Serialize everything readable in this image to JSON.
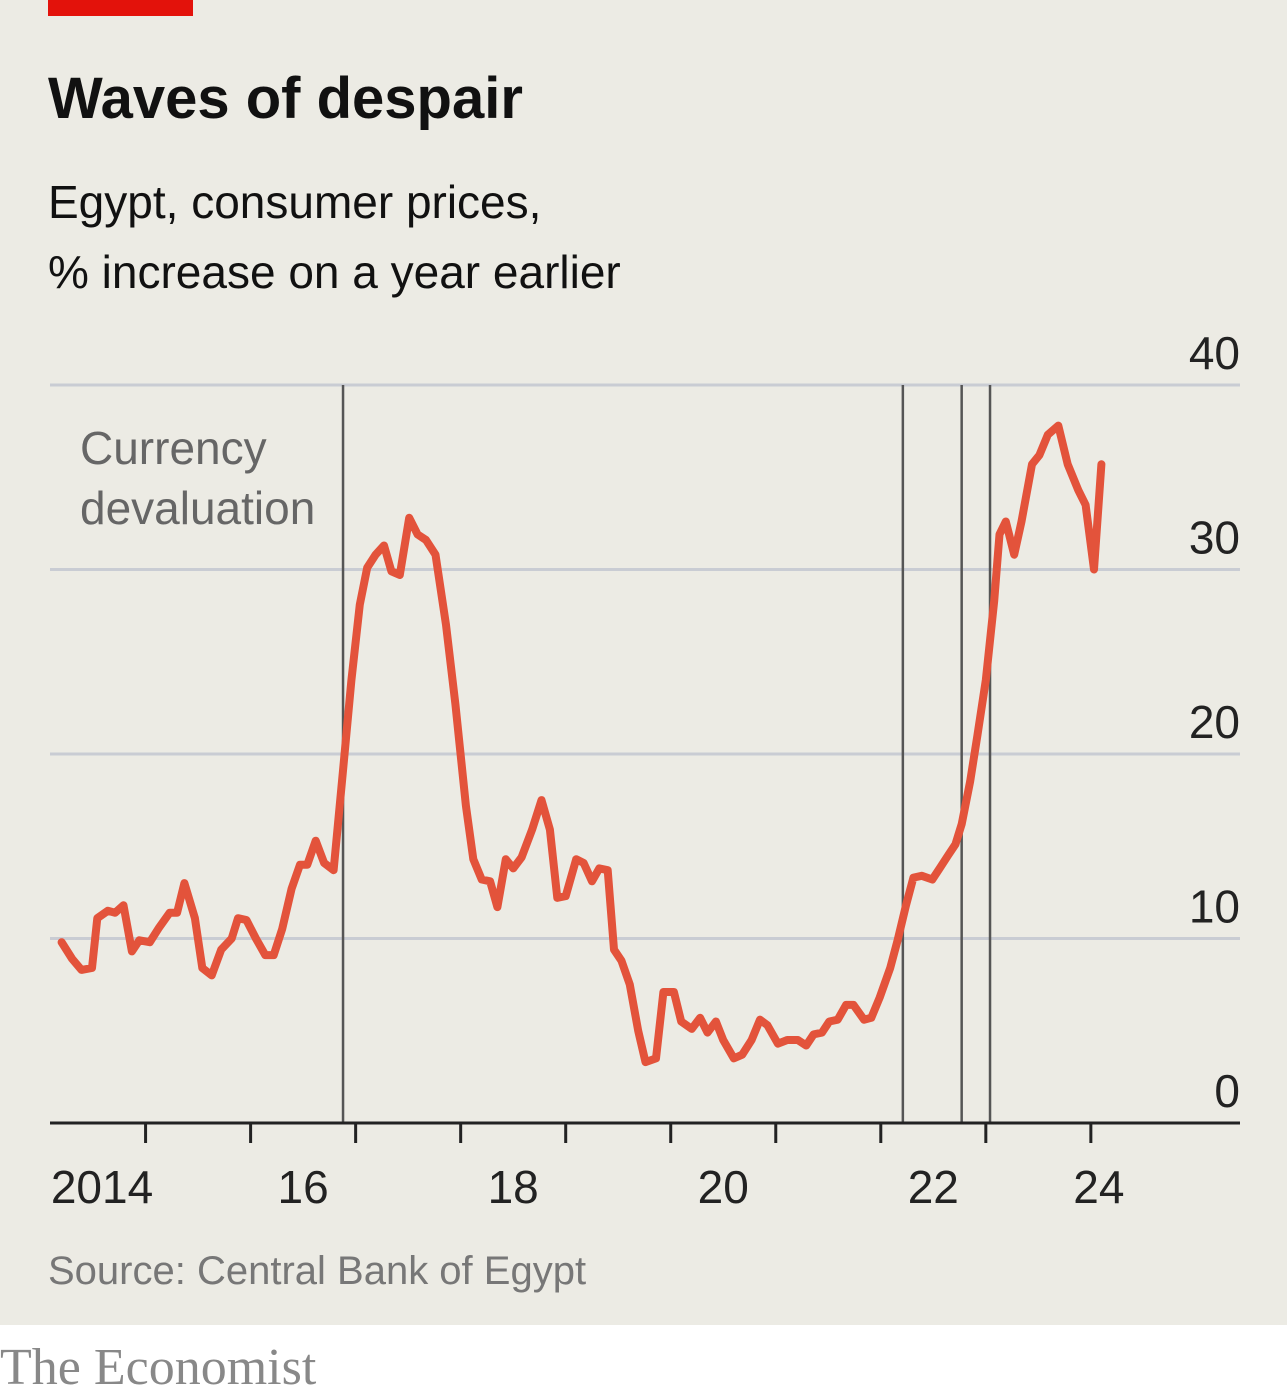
{
  "chart_data": {
    "type": "line",
    "title": "Waves of despair",
    "subtitle": "Egypt, consumer prices,",
    "subtitle2": "% increase on a year earlier",
    "annotation": "Currency devaluation",
    "source": "Source: Central Bank of Egypt",
    "watermark": "The Economist",
    "color": "#e3533b",
    "x": [
      2014.2,
      2014.3,
      2014.39,
      2014.49,
      2014.54,
      2014.64,
      2014.71,
      2014.79,
      2014.87,
      2014.94,
      2015.04,
      2015.13,
      2015.23,
      2015.3,
      2015.37,
      2015.47,
      2015.54,
      2015.63,
      2015.72,
      2015.82,
      2015.88,
      2015.96,
      2016.05,
      2016.14,
      2016.22,
      2016.3,
      2016.39,
      2016.47,
      2016.54,
      2016.62,
      2016.7,
      2016.79,
      2016.88,
      2016.96,
      2017.04,
      2017.11,
      2017.19,
      2017.27,
      2017.34,
      2017.42,
      2017.51,
      2017.59,
      2017.67,
      2017.76,
      2017.86,
      2017.95,
      2018.05,
      2018.12,
      2018.2,
      2018.28,
      2018.35,
      2018.43,
      2018.5,
      2018.58,
      2018.68,
      2018.77,
      2018.85,
      2018.92,
      2019.0,
      2019.1,
      2019.17,
      2019.25,
      2019.32,
      2019.4,
      2019.46,
      2019.53,
      2019.61,
      2019.69,
      2019.76,
      2019.86,
      2019.93,
      2020.03,
      2020.1,
      2020.2,
      2020.28,
      2020.35,
      2020.43,
      2020.5,
      2020.6,
      2020.68,
      2020.77,
      2020.85,
      2020.92,
      2021.02,
      2021.11,
      2021.21,
      2021.29,
      2021.36,
      2021.44,
      2021.51,
      2021.59,
      2021.67,
      2021.74,
      2021.84,
      2021.91,
      2021.99,
      2022.09,
      2022.16,
      2022.24,
      2022.31,
      2022.39,
      2022.49,
      2022.56,
      2022.64,
      2022.71,
      2022.77,
      2022.85,
      2022.92,
      2023.0,
      2023.08,
      2023.13,
      2023.19,
      2023.27,
      2023.34,
      2023.44,
      2023.51,
      2023.59,
      2023.69,
      2023.78,
      2023.88,
      2023.95,
      2024.03,
      2024.1
    ],
    "values": [
      9.8,
      8.9,
      8.3,
      8.4,
      11.1,
      11.5,
      11.4,
      11.8,
      9.3,
      9.9,
      9.8,
      10.6,
      11.4,
      11.4,
      13.0,
      11.1,
      8.4,
      8.0,
      9.4,
      10.0,
      11.1,
      11.0,
      10.0,
      9.1,
      9.1,
      10.5,
      12.7,
      14.0,
      14.0,
      15.3,
      14.1,
      13.7,
      19.1,
      24.0,
      28.1,
      30.1,
      30.8,
      31.3,
      29.9,
      29.7,
      32.8,
      31.9,
      31.6,
      30.8,
      27.0,
      22.7,
      17.2,
      14.3,
      13.2,
      13.1,
      11.7,
      14.3,
      13.8,
      14.4,
      15.9,
      17.5,
      15.9,
      12.2,
      12.3,
      14.3,
      14.1,
      13.1,
      13.8,
      13.7,
      9.4,
      8.8,
      7.5,
      5.0,
      3.3,
      3.5,
      7.1,
      7.1,
      5.5,
      5.1,
      5.7,
      4.9,
      5.5,
      4.5,
      3.5,
      3.7,
      4.5,
      5.6,
      5.3,
      4.3,
      4.5,
      4.5,
      4.2,
      4.8,
      4.9,
      5.5,
      5.6,
      6.4,
      6.4,
      5.6,
      5.7,
      6.8,
      8.4,
      9.9,
      11.8,
      13.3,
      13.4,
      13.2,
      13.8,
      14.5,
      15.1,
      16.2,
      18.5,
      21.0,
      24.0,
      28.3,
      31.9,
      32.6,
      30.8,
      32.6,
      35.7,
      36.2,
      37.3,
      37.8,
      35.7,
      34.3,
      33.5,
      30.0,
      35.7
    ],
    "devaluations": [
      2016.88,
      2022.21,
      2022.77,
      2023.04
    ],
    "xlim": [
      2014.09,
      2025.42
    ],
    "xticks": [
      {
        "value": 2014,
        "label": "2014"
      },
      {
        "value": 2016,
        "label": "16"
      },
      {
        "value": 2018,
        "label": "18"
      },
      {
        "value": 2020,
        "label": "20"
      },
      {
        "value": 2022,
        "label": "22"
      },
      {
        "value": 2024,
        "label": "24"
      }
    ],
    "xminorticks": [
      2015,
      2017,
      2019,
      2021,
      2023
    ],
    "ylim": [
      0,
      40
    ],
    "yticks": [
      0,
      10,
      20,
      30,
      40
    ],
    "grid": true
  }
}
